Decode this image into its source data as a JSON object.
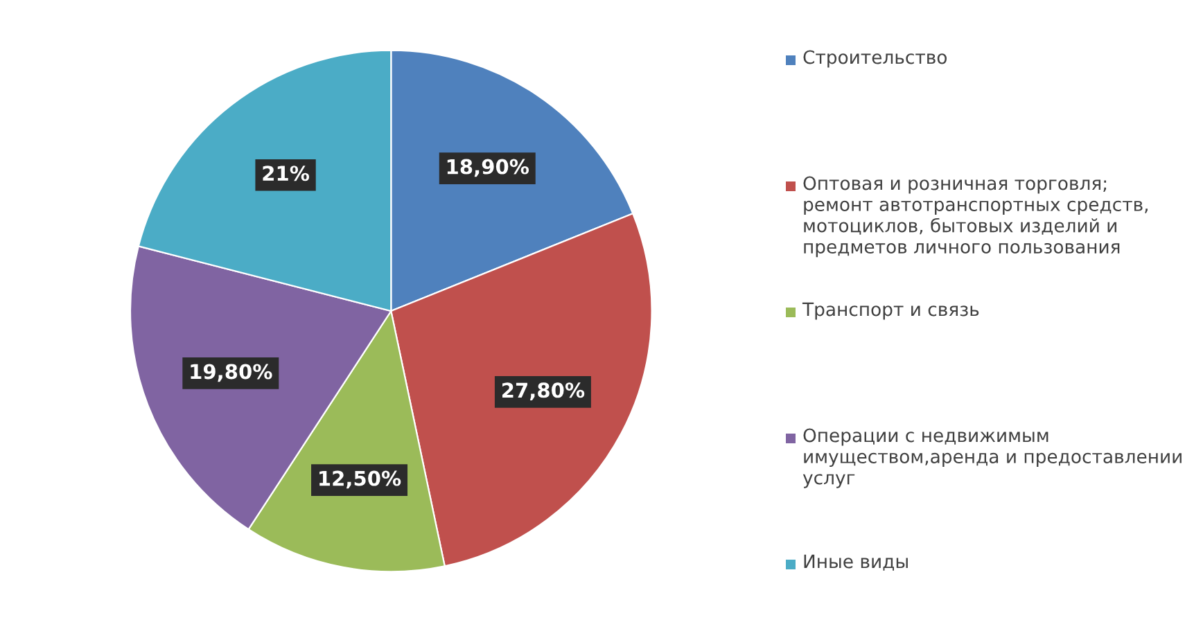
{
  "chart_data": {
    "type": "pie",
    "categories": [
      "Строительство",
      "Оптовая и розничная торговля; ремонт автотранспортных средств, мотоциклов, бытовых изделий и предметов личного пользования",
      "Транспорт и связь",
      "Операции с недвижимым имуществом,аренда и предоставлении услуг",
      "Иные виды"
    ],
    "values": [
      18.9,
      27.8,
      12.5,
      19.8,
      21
    ],
    "colors": [
      "#4f81bd",
      "#c0504d",
      "#9bbb59",
      "#8064a2",
      "#4bacc6"
    ],
    "value_labels": [
      "18,90%",
      "27,80%",
      "12,50%",
      "19,80%",
      "21%"
    ],
    "legend": "right"
  }
}
